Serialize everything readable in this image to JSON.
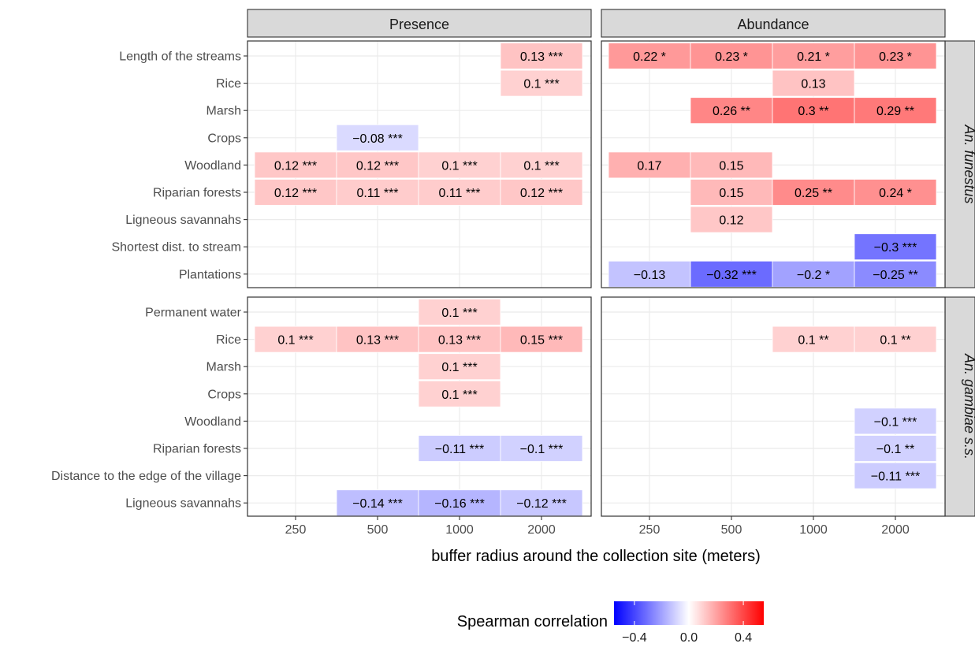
{
  "chart_data": {
    "type": "heatmap",
    "xlabel": "buffer radius around the collection site (meters)",
    "x_categories": [
      "250",
      "500",
      "1000",
      "2000"
    ],
    "columns": [
      "Presence",
      "Abundance"
    ],
    "legend": {
      "title": "Spearman correlation",
      "ticks": [
        "−0.4",
        "0.0",
        "0.4"
      ],
      "tick_values": [
        -0.4,
        0.0,
        0.4
      ],
      "range": [
        -0.55,
        0.55
      ],
      "low_color": "#0000ff",
      "mid_color": "#ffffff",
      "high_color": "#ff0000",
      "position": "bottom"
    },
    "panels": [
      {
        "row": "An. funestus",
        "column": "Presence",
        "rows": [
          "Length of the streams",
          "Rice",
          "Marsh",
          "Crops",
          "Woodland",
          "Riparian forests",
          "Ligneous savannahs",
          "Shortest dist. to stream",
          "Plantations"
        ],
        "cells": [
          {
            "r": 0,
            "c": 3,
            "value": 0.13,
            "label": "0.13 ***"
          },
          {
            "r": 1,
            "c": 3,
            "value": 0.1,
            "label": "0.1 ***"
          },
          {
            "r": 3,
            "c": 1,
            "value": -0.08,
            "label": "−0.08 ***"
          },
          {
            "r": 4,
            "c": 0,
            "value": 0.12,
            "label": "0.12 ***"
          },
          {
            "r": 4,
            "c": 1,
            "value": 0.12,
            "label": "0.12 ***"
          },
          {
            "r": 4,
            "c": 2,
            "value": 0.1,
            "label": "0.1 ***"
          },
          {
            "r": 4,
            "c": 3,
            "value": 0.1,
            "label": "0.1 ***"
          },
          {
            "r": 5,
            "c": 0,
            "value": 0.12,
            "label": "0.12 ***"
          },
          {
            "r": 5,
            "c": 1,
            "value": 0.11,
            "label": "0.11 ***"
          },
          {
            "r": 5,
            "c": 2,
            "value": 0.11,
            "label": "0.11 ***"
          },
          {
            "r": 5,
            "c": 3,
            "value": 0.12,
            "label": "0.12 ***"
          }
        ]
      },
      {
        "row": "An. funestus",
        "column": "Abundance",
        "rows": [
          "Length of the streams",
          "Rice",
          "Marsh",
          "Crops",
          "Woodland",
          "Riparian forests",
          "Ligneous savannahs",
          "Shortest dist. to stream",
          "Plantations"
        ],
        "cells": [
          {
            "r": 0,
            "c": 0,
            "value": 0.22,
            "label": "0.22  *"
          },
          {
            "r": 0,
            "c": 1,
            "value": 0.23,
            "label": "0.23  *"
          },
          {
            "r": 0,
            "c": 2,
            "value": 0.21,
            "label": "0.21  *"
          },
          {
            "r": 0,
            "c": 3,
            "value": 0.23,
            "label": "0.23  *"
          },
          {
            "r": 1,
            "c": 2,
            "value": 0.13,
            "label": "0.13"
          },
          {
            "r": 2,
            "c": 1,
            "value": 0.26,
            "label": "0.26 **"
          },
          {
            "r": 2,
            "c": 2,
            "value": 0.3,
            "label": "0.3 **"
          },
          {
            "r": 2,
            "c": 3,
            "value": 0.29,
            "label": "0.29 **"
          },
          {
            "r": 4,
            "c": 0,
            "value": 0.17,
            "label": "0.17"
          },
          {
            "r": 4,
            "c": 1,
            "value": 0.15,
            "label": "0.15"
          },
          {
            "r": 5,
            "c": 1,
            "value": 0.15,
            "label": "0.15"
          },
          {
            "r": 5,
            "c": 2,
            "value": 0.25,
            "label": "0.25 **"
          },
          {
            "r": 5,
            "c": 3,
            "value": 0.24,
            "label": "0.24  *"
          },
          {
            "r": 6,
            "c": 1,
            "value": 0.12,
            "label": "0.12"
          },
          {
            "r": 7,
            "c": 3,
            "value": -0.3,
            "label": "−0.3 ***"
          },
          {
            "r": 8,
            "c": 0,
            "value": -0.13,
            "label": "−0.13"
          },
          {
            "r": 8,
            "c": 1,
            "value": -0.32,
            "label": "−0.32 ***"
          },
          {
            "r": 8,
            "c": 2,
            "value": -0.2,
            "label": "−0.2  *"
          },
          {
            "r": 8,
            "c": 3,
            "value": -0.25,
            "label": "−0.25 **"
          }
        ]
      },
      {
        "row": "An. gambiae s.s.",
        "column": "Presence",
        "rows": [
          "Permanent water",
          "Rice",
          "Marsh",
          "Crops",
          "Woodland",
          "Riparian forests",
          "Distance to the edge of the village",
          "Ligneous savannahs"
        ],
        "cells": [
          {
            "r": 0,
            "c": 2,
            "value": 0.1,
            "label": "0.1 ***"
          },
          {
            "r": 1,
            "c": 0,
            "value": 0.1,
            "label": "0.1 ***"
          },
          {
            "r": 1,
            "c": 1,
            "value": 0.13,
            "label": "0.13 ***"
          },
          {
            "r": 1,
            "c": 2,
            "value": 0.13,
            "label": "0.13 ***"
          },
          {
            "r": 1,
            "c": 3,
            "value": 0.15,
            "label": "0.15 ***"
          },
          {
            "r": 2,
            "c": 2,
            "value": 0.1,
            "label": "0.1 ***"
          },
          {
            "r": 3,
            "c": 2,
            "value": 0.1,
            "label": "0.1 ***"
          },
          {
            "r": 5,
            "c": 2,
            "value": -0.11,
            "label": "−0.11 ***"
          },
          {
            "r": 5,
            "c": 3,
            "value": -0.1,
            "label": "−0.1 ***"
          },
          {
            "r": 7,
            "c": 1,
            "value": -0.14,
            "label": "−0.14 ***"
          },
          {
            "r": 7,
            "c": 2,
            "value": -0.16,
            "label": "−0.16 ***"
          },
          {
            "r": 7,
            "c": 3,
            "value": -0.12,
            "label": "−0.12 ***"
          }
        ]
      },
      {
        "row": "An. gambiae s.s.",
        "column": "Abundance",
        "rows": [
          "Permanent water",
          "Rice",
          "Marsh",
          "Crops",
          "Woodland",
          "Riparian forests",
          "Distance to the edge of the village",
          "Ligneous savannahs"
        ],
        "cells": [
          {
            "r": 1,
            "c": 2,
            "value": 0.1,
            "label": "0.1 **"
          },
          {
            "r": 1,
            "c": 3,
            "value": 0.1,
            "label": "0.1 **"
          },
          {
            "r": 4,
            "c": 3,
            "value": -0.1,
            "label": "−0.1 ***"
          },
          {
            "r": 5,
            "c": 3,
            "value": -0.1,
            "label": "−0.1 **"
          },
          {
            "r": 6,
            "c": 3,
            "value": -0.11,
            "label": "−0.11 ***"
          }
        ]
      }
    ],
    "row_strips": [
      "An. funestus",
      "An. gambiae s.s."
    ]
  }
}
